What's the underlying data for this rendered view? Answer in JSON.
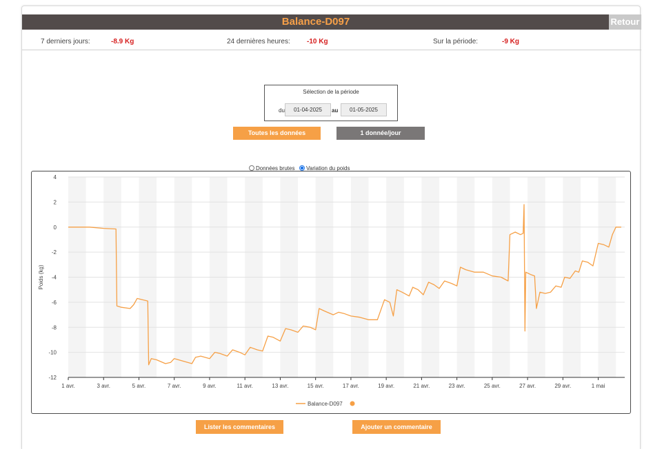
{
  "header": {
    "title": "Balance-D097",
    "back_label": "Retour"
  },
  "stats": [
    {
      "label": "7 derniers jours:",
      "value": "-8.9 Kg"
    },
    {
      "label": "24 dernières heures:",
      "value": "-10 Kg"
    },
    {
      "label": "Sur la période:",
      "value": "-9 Kg"
    }
  ],
  "period": {
    "title": "Sélection de la période",
    "du_label": "du",
    "au_label": "au",
    "start": "01-04-2025",
    "end": "01-05-2025"
  },
  "buttons": {
    "all_data": "Toutes les données",
    "one_per_day": "1 donnée/jour",
    "list_comments": "Lister les commentaires",
    "add_comment": "Ajouter un commentaire"
  },
  "radio": {
    "raw": "Données brutes",
    "variation": "Variation du poids",
    "selected": "variation"
  },
  "colors": {
    "series": "#f6a046",
    "title_bar": "#524b4a",
    "accent": "#f7a048",
    "stat_value": "#d62020"
  },
  "chart_data": {
    "type": "line",
    "title": "",
    "xlabel": "",
    "ylabel": "Poids (kg)",
    "ylim": [
      -12,
      4
    ],
    "yticks": [
      4,
      2,
      0,
      -2,
      -4,
      -6,
      -8,
      -10,
      -12
    ],
    "xlim": [
      0,
      31.5
    ],
    "x_unit": "days since 1 avr.",
    "xticks": [
      {
        "x": 0,
        "label": "1 avr."
      },
      {
        "x": 2,
        "label": "3 avr."
      },
      {
        "x": 4,
        "label": "5 avr."
      },
      {
        "x": 6,
        "label": "7 avr."
      },
      {
        "x": 8,
        "label": "9 avr."
      },
      {
        "x": 10,
        "label": "11 avr."
      },
      {
        "x": 12,
        "label": "13 avr."
      },
      {
        "x": 14,
        "label": "15 avr."
      },
      {
        "x": 16,
        "label": "17 avr."
      },
      {
        "x": 18,
        "label": "19 avr."
      },
      {
        "x": 20,
        "label": "21 avr."
      },
      {
        "x": 22,
        "label": "23 avr."
      },
      {
        "x": 24,
        "label": "25 avr."
      },
      {
        "x": 26,
        "label": "27 avr."
      },
      {
        "x": 28,
        "label": "29 avr."
      },
      {
        "x": 30,
        "label": "1 mai"
      }
    ],
    "grid": "horizontal",
    "legend": "bottom-center",
    "series": [
      {
        "name": "Balance-D097",
        "points": [
          [
            0.0,
            0.0
          ],
          [
            1.2,
            0.0
          ],
          [
            2.0,
            -0.1
          ],
          [
            2.7,
            -0.15
          ],
          [
            2.75,
            -6.3
          ],
          [
            3.0,
            -6.4
          ],
          [
            3.5,
            -6.5
          ],
          [
            3.7,
            -6.2
          ],
          [
            3.9,
            -5.7
          ],
          [
            4.2,
            -5.8
          ],
          [
            4.5,
            -5.9
          ],
          [
            4.55,
            -11.0
          ],
          [
            4.7,
            -10.5
          ],
          [
            5.0,
            -10.6
          ],
          [
            5.5,
            -10.9
          ],
          [
            5.8,
            -10.8
          ],
          [
            6.0,
            -10.5
          ],
          [
            6.5,
            -10.7
          ],
          [
            7.0,
            -10.9
          ],
          [
            7.2,
            -10.4
          ],
          [
            7.5,
            -10.3
          ],
          [
            8.0,
            -10.5
          ],
          [
            8.3,
            -10.0
          ],
          [
            8.6,
            -10.1
          ],
          [
            9.0,
            -10.3
          ],
          [
            9.3,
            -9.8
          ],
          [
            9.7,
            -10.0
          ],
          [
            10.0,
            -10.2
          ],
          [
            10.3,
            -9.6
          ],
          [
            10.7,
            -9.8
          ],
          [
            11.0,
            -9.9
          ],
          [
            11.3,
            -8.7
          ],
          [
            11.6,
            -8.8
          ],
          [
            12.0,
            -9.1
          ],
          [
            12.3,
            -8.1
          ],
          [
            12.6,
            -8.2
          ],
          [
            13.0,
            -8.4
          ],
          [
            13.3,
            -7.9
          ],
          [
            13.7,
            -8.0
          ],
          [
            14.0,
            -8.2
          ],
          [
            14.2,
            -6.5
          ],
          [
            14.5,
            -6.7
          ],
          [
            15.0,
            -7.0
          ],
          [
            15.3,
            -6.8
          ],
          [
            15.6,
            -6.9
          ],
          [
            16.0,
            -7.1
          ],
          [
            16.5,
            -7.2
          ],
          [
            17.0,
            -7.4
          ],
          [
            17.5,
            -7.4
          ],
          [
            17.9,
            -5.8
          ],
          [
            18.2,
            -6.0
          ],
          [
            18.4,
            -7.1
          ],
          [
            18.6,
            -5.0
          ],
          [
            18.9,
            -5.2
          ],
          [
            19.3,
            -5.5
          ],
          [
            19.5,
            -4.8
          ],
          [
            19.8,
            -5.0
          ],
          [
            20.1,
            -5.4
          ],
          [
            20.4,
            -4.4
          ],
          [
            20.7,
            -4.6
          ],
          [
            21.0,
            -4.9
          ],
          [
            21.3,
            -4.3
          ],
          [
            21.7,
            -4.5
          ],
          [
            22.0,
            -4.7
          ],
          [
            22.2,
            -3.2
          ],
          [
            22.5,
            -3.4
          ],
          [
            23.0,
            -3.6
          ],
          [
            23.5,
            -3.6
          ],
          [
            24.0,
            -3.9
          ],
          [
            24.5,
            -4.0
          ],
          [
            24.9,
            -4.3
          ],
          [
            25.0,
            -0.6
          ],
          [
            25.3,
            -0.4
          ],
          [
            25.6,
            -0.6
          ],
          [
            25.75,
            -0.5
          ],
          [
            25.8,
            1.8
          ],
          [
            25.85,
            -8.3
          ],
          [
            25.9,
            -3.6
          ],
          [
            26.2,
            -3.8
          ],
          [
            26.4,
            -3.9
          ],
          [
            26.5,
            -6.5
          ],
          [
            26.7,
            -5.2
          ],
          [
            27.0,
            -5.3
          ],
          [
            27.3,
            -5.2
          ],
          [
            27.6,
            -4.7
          ],
          [
            27.9,
            -4.8
          ],
          [
            28.1,
            -4.0
          ],
          [
            28.4,
            -4.1
          ],
          [
            28.7,
            -3.5
          ],
          [
            28.9,
            -3.6
          ],
          [
            29.1,
            -2.7
          ],
          [
            29.4,
            -2.8
          ],
          [
            29.7,
            -3.1
          ],
          [
            30.0,
            -1.3
          ],
          [
            30.3,
            -1.4
          ],
          [
            30.6,
            -1.6
          ],
          [
            30.8,
            -0.6
          ],
          [
            31.0,
            0.0
          ],
          [
            31.3,
            0.0
          ]
        ]
      }
    ]
  }
}
